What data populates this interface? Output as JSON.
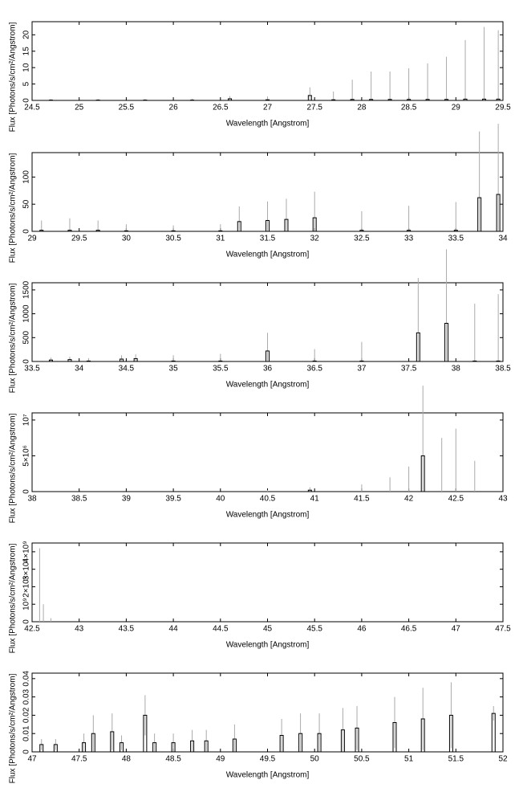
{
  "chart_data": [
    {
      "type": "errorbar",
      "x_label": "Wavelength [Angstrom]",
      "y_label": "Flux [Photons/s/cm²/Angstrom]",
      "xlim": [
        24.5,
        29.5
      ],
      "xticks": [
        24.5,
        25,
        25.5,
        26,
        26.5,
        27,
        27.5,
        28,
        28.5,
        29,
        29.5
      ],
      "ylim": [
        0,
        24
      ],
      "yticks": [
        0,
        5,
        10,
        15,
        20
      ],
      "x": [
        24.7,
        25.2,
        25.7,
        26.2,
        26.6,
        27.0,
        27.45,
        27.7,
        27.9,
        28.1,
        28.3,
        28.5,
        28.7,
        28.9,
        29.1,
        29.3,
        29.45
      ],
      "values": [
        0.1,
        0.1,
        0.1,
        0.1,
        0.5,
        0.2,
        1.5,
        0.2,
        0.3,
        0.3,
        0.3,
        0.3,
        0.3,
        0.3,
        0.4,
        0.4,
        0.4
      ],
      "errors": [
        0.3,
        0.3,
        0.3,
        0.4,
        0.8,
        1,
        2.5,
        2.5,
        6,
        8.5,
        8.5,
        9.5,
        11,
        13,
        18,
        22,
        21
      ]
    },
    {
      "type": "errorbar",
      "x_label": "Wavelength [Angstrom]",
      "y_label": "Flux [Photons/s/cm²/Angstrom]",
      "xlim": [
        29,
        34
      ],
      "xticks": [
        29,
        29.5,
        30,
        30.5,
        31,
        31.5,
        32,
        32.5,
        33,
        33.5,
        34
      ],
      "ylim": [
        0,
        145
      ],
      "yticks": [
        0,
        50,
        100
      ],
      "x": [
        29.1,
        29.4,
        29.7,
        30,
        30.5,
        31,
        31.2,
        31.5,
        31.7,
        32,
        32.5,
        33,
        33.5,
        33.75,
        33.95
      ],
      "values": [
        2,
        2,
        2,
        1,
        1,
        1,
        18,
        20,
        22,
        25,
        2,
        2,
        2,
        62,
        68
      ],
      "errors": [
        18,
        22,
        18,
        12,
        10,
        12,
        28,
        35,
        38,
        48,
        35,
        45,
        52,
        122,
        130
      ]
    },
    {
      "type": "errorbar",
      "x_label": "Wavelength [Angstrom]",
      "y_label": "Flux [Photons/s/cm²/Angstrom]",
      "xlim": [
        33.5,
        38.5
      ],
      "xticks": [
        33.5,
        34,
        34.5,
        35,
        35.5,
        36,
        36.5,
        37,
        37.5,
        38,
        38.5
      ],
      "ylim": [
        0,
        1650
      ],
      "yticks": [
        0,
        500,
        1000,
        1500
      ],
      "x": [
        33.7,
        33.9,
        34.1,
        34.45,
        34.6,
        35,
        35.5,
        36,
        36.5,
        37,
        37.6,
        37.9,
        38.2,
        38.45
      ],
      "values": [
        30,
        40,
        10,
        50,
        60,
        10,
        10,
        220,
        10,
        10,
        600,
        800,
        10,
        10
      ],
      "errors": [
        50,
        60,
        60,
        80,
        90,
        120,
        150,
        380,
        250,
        400,
        1150,
        1550,
        1200,
        1400
      ]
    },
    {
      "type": "errorbar",
      "x_label": "Wavelength [Angstrom]",
      "y_label": "Flux [Photons/s/cm²/Angstrom]",
      "xlim": [
        38,
        43
      ],
      "xticks": [
        38,
        38.5,
        39,
        39.5,
        40,
        40.5,
        41,
        41.5,
        42,
        42.5,
        43
      ],
      "ylim": [
        0,
        11000000
      ],
      "yticks": [
        0,
        {
          "value": 5000000,
          "label": "5×10⁶"
        },
        {
          "value": 10000000,
          "label": "10⁷"
        }
      ],
      "x": [
        40.5,
        40.95,
        41.5,
        41.8,
        42.0,
        42.15,
        42.35,
        42.5,
        42.7
      ],
      "values": [
        0,
        200000,
        0,
        0,
        0,
        5000000,
        0,
        0,
        0
      ],
      "errors": [
        200000,
        400000,
        1000000,
        2000000,
        3500000,
        9800000,
        7500000,
        8800000,
        4300000
      ]
    },
    {
      "type": "errorbar",
      "x_label": "Wavelength [Angstrom]",
      "y_label": "Flux [Photons/s/cm²/Angstrom]",
      "xlim": [
        42.5,
        47.5
      ],
      "xticks": [
        42.5,
        43,
        43.5,
        44,
        44.5,
        45,
        45.5,
        46,
        46.5,
        47,
        47.5
      ],
      "ylim": [
        0,
        4500000000
      ],
      "yticks": [
        0,
        {
          "value": 1000000000,
          "label": "10⁹"
        },
        {
          "value": 2000000000,
          "label": "2×10⁹"
        },
        {
          "value": 3000000000,
          "label": "3×10⁹"
        },
        {
          "value": 4000000000,
          "label": "4×10⁹"
        }
      ],
      "x": [
        42.58,
        42.62,
        42.7
      ],
      "values": [
        0,
        0,
        0
      ],
      "errors": [
        4200000000,
        1000000000,
        200000000
      ]
    },
    {
      "type": "errorbar",
      "x_label": "Wavelength [Angstrom]",
      "y_label": "Flux [Photons/s/cm²/Angstrom]",
      "xlim": [
        47,
        52
      ],
      "xticks": [
        47,
        47.5,
        48,
        48.5,
        49,
        49.5,
        50,
        50.5,
        51,
        51.5,
        52
      ],
      "ylim": [
        0,
        0.043
      ],
      "yticks": [
        0,
        0.01,
        0.02,
        0.03,
        0.04
      ],
      "x": [
        47.1,
        47.25,
        47.55,
        47.65,
        47.85,
        47.95,
        48.2,
        48.3,
        48.5,
        48.7,
        48.85,
        49.15,
        49.65,
        49.85,
        50.05,
        50.3,
        50.45,
        50.85,
        51.15,
        51.45,
        51.9
      ],
      "values": [
        0.004,
        0.004,
        0.005,
        0.01,
        0.011,
        0.005,
        0.02,
        0.005,
        0.005,
        0.006,
        0.006,
        0.007,
        0.009,
        0.01,
        0.01,
        0.012,
        0.013,
        0.016,
        0.018,
        0.02,
        0.021
      ],
      "errors": [
        0.003,
        0.003,
        0.005,
        0.01,
        0.01,
        0.004,
        0.011,
        0.005,
        0.005,
        0.006,
        0.006,
        0.008,
        0.009,
        0.011,
        0.011,
        0.012,
        0.012,
        0.014,
        0.017,
        0.018,
        0.004
      ]
    }
  ]
}
